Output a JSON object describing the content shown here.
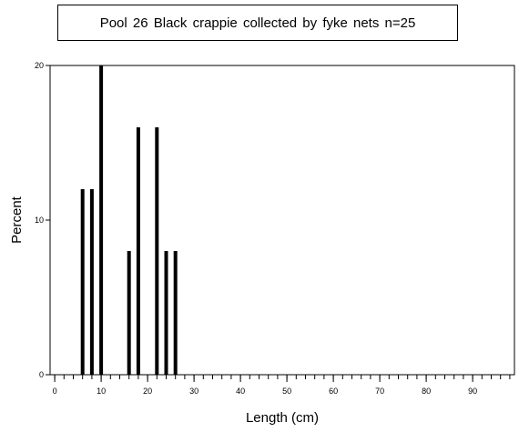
{
  "chart_data": {
    "type": "bar",
    "title": "Pool 26 Black crappie collected by fyke nets   n=25",
    "xlabel": "Length (cm)",
    "ylabel": "Percent",
    "xlim": [
      -1,
      99
    ],
    "ylim": [
      0,
      20
    ],
    "x_ticks": [
      0,
      10,
      20,
      30,
      40,
      50,
      60,
      70,
      80,
      90
    ],
    "y_ticks": [
      0,
      10,
      20
    ],
    "x": [
      6,
      8,
      10,
      16,
      18,
      22,
      24,
      26
    ],
    "values": [
      12,
      12,
      20,
      8,
      16,
      16,
      8,
      8
    ],
    "grid": false,
    "legend": "none",
    "colors": {
      "bar": "#000000",
      "axis": "#000000",
      "background": "#ffffff"
    }
  }
}
